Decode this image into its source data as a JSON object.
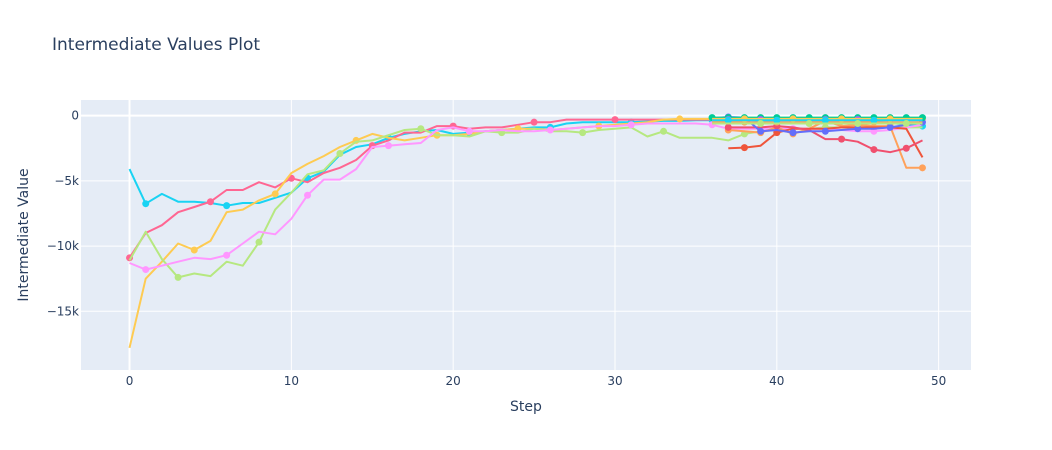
{
  "chart_data": {
    "type": "line",
    "title": "Intermediate Values Plot",
    "xlabel": "Step",
    "ylabel": "Intermediate Value",
    "xlim": [
      -3,
      52
    ],
    "ylim": [
      -19500,
      1200
    ],
    "x_ticks": [
      0,
      10,
      20,
      30,
      40,
      50
    ],
    "y_ticks": [
      {
        "value": 0,
        "label": "0"
      },
      {
        "value": -5000,
        "label": "−5k"
      },
      {
        "value": -10000,
        "label": "−10k"
      },
      {
        "value": -15000,
        "label": "−15k"
      }
    ],
    "grid": true,
    "plot_bg": "#e5ecf6",
    "series": [
      {
        "color": "#19d3f3",
        "x": [
          0,
          1,
          2,
          3,
          4,
          5,
          6,
          7,
          8,
          9,
          10,
          11,
          12,
          13,
          14,
          15,
          16,
          17,
          18,
          19,
          20,
          21,
          22,
          23,
          24,
          25,
          26,
          27,
          28,
          29,
          30,
          31,
          32,
          33,
          34,
          35,
          36,
          37,
          38,
          39,
          40,
          41,
          42,
          43,
          44,
          45,
          46,
          47,
          48,
          49
        ],
        "y": [
          -4100,
          -6750,
          -6000,
          -6600,
          -6600,
          -6700,
          -6900,
          -6700,
          -6700,
          -6300,
          -5900,
          -4800,
          -4300,
          -3000,
          -2400,
          -2200,
          -1700,
          -1400,
          -1200,
          -1100,
          -1400,
          -1300,
          -1200,
          -1100,
          -1000,
          -900,
          -900,
          -600,
          -500,
          -500,
          -500,
          -500,
          -450,
          -400,
          -400,
          -350,
          -350,
          -300,
          -300,
          -400,
          -350,
          -350,
          -350,
          -350,
          -350,
          -400,
          -450,
          -550,
          -700,
          -800
        ],
        "markers": [
          1,
          6,
          11,
          16,
          21,
          26,
          31,
          36,
          41,
          46,
          49
        ]
      },
      {
        "color": "#ff6692",
        "x": [
          0,
          1,
          2,
          3,
          4,
          5,
          6,
          7,
          8,
          9,
          10,
          11,
          12,
          13,
          14,
          15,
          16,
          17,
          18,
          19,
          20,
          21,
          22,
          23,
          24,
          25,
          26,
          27,
          28,
          29,
          30,
          31,
          32,
          33,
          34,
          35,
          36,
          37,
          38,
          39,
          40,
          41,
          42,
          43,
          44,
          45,
          46,
          47,
          48,
          49
        ],
        "y": [
          -10900,
          -9000,
          -8400,
          -7400,
          -7000,
          -6600,
          -5700,
          -5700,
          -5100,
          -5500,
          -4800,
          -5100,
          -4400,
          -4000,
          -3400,
          -2300,
          -1900,
          -1300,
          -1300,
          -800,
          -800,
          -1000,
          -900,
          -900,
          -700,
          -500,
          -500,
          -300,
          -300,
          -300,
          -300,
          -300,
          -300,
          -300,
          -300,
          -300,
          -300,
          -300,
          -300,
          -300,
          -300,
          -300,
          -300,
          -300,
          -300,
          -300,
          -300,
          -300,
          -300,
          -300
        ],
        "markers": [
          0,
          5,
          10,
          15,
          20,
          25,
          30
        ]
      },
      {
        "color": "#fecb52",
        "x": [
          0,
          1,
          2,
          3,
          4,
          5,
          6,
          7,
          8,
          9,
          10,
          11,
          12,
          13,
          14,
          15,
          16,
          17,
          18,
          19,
          20,
          21,
          22,
          23,
          24,
          25,
          26,
          27,
          28,
          29,
          30,
          31,
          32,
          33,
          34,
          35,
          36,
          37,
          38,
          39,
          40,
          41,
          42,
          43,
          44,
          45,
          46,
          47,
          48,
          49
        ],
        "y": [
          -17800,
          -12500,
          -11200,
          -9800,
          -10300,
          -9600,
          -7400,
          -7200,
          -6500,
          -6000,
          -4400,
          -3700,
          -3100,
          -2400,
          -1900,
          -1400,
          -1700,
          -1900,
          -1700,
          -1500,
          -1500,
          -1400,
          -1200,
          -1100,
          -1000,
          -1000,
          -1100,
          -1000,
          -900,
          -800,
          -700,
          -600,
          -500,
          -300,
          -250,
          -250,
          -250,
          -250,
          -250,
          -250,
          -250,
          -250,
          -250,
          -250,
          -250,
          -250,
          -250,
          -250,
          -250,
          -250
        ],
        "markers": [
          4,
          9,
          14,
          19,
          24,
          29,
          34,
          39,
          44,
          48,
          49
        ]
      },
      {
        "color": "#b6e880",
        "x": [
          0,
          1,
          2,
          3,
          4,
          5,
          6,
          7,
          8,
          9,
          10,
          11,
          12,
          13,
          14,
          15,
          16,
          17,
          18,
          19,
          20,
          21,
          22,
          23,
          24,
          25,
          26,
          27,
          28,
          29,
          30,
          31,
          32,
          33,
          34,
          35,
          36,
          37,
          38,
          39,
          40,
          41,
          42,
          43,
          44,
          45,
          46,
          47,
          48,
          49
        ],
        "y": [
          -11100,
          -8900,
          -11000,
          -12400,
          -12100,
          -12300,
          -11200,
          -11500,
          -9700,
          -7200,
          -5900,
          -4500,
          -4200,
          -2900,
          -2000,
          -1900,
          -1500,
          -1100,
          -1000,
          -1500,
          -1500,
          -1600,
          -1200,
          -1300,
          -1300,
          -1000,
          -1200,
          -1200,
          -1300,
          -1100,
          -1000,
          -900,
          -1600,
          -1200,
          -1700,
          -1700,
          -1700,
          -1900,
          -1400,
          -1200,
          -1100,
          -1000,
          -1000,
          -900,
          -900,
          -900,
          -900,
          -900,
          -900,
          -900
        ],
        "markers": [
          3,
          8,
          13,
          18,
          23,
          28,
          33,
          38,
          43
        ]
      },
      {
        "color": "#ff97ff",
        "x": [
          0,
          1,
          2,
          3,
          4,
          5,
          6,
          7,
          8,
          9,
          10,
          11,
          12,
          13,
          14,
          15,
          16,
          17,
          18,
          19,
          20,
          21,
          22,
          23,
          24,
          25,
          26,
          27,
          28,
          29,
          30,
          31,
          32,
          33,
          34,
          35,
          36,
          37,
          38,
          39,
          40,
          41,
          42,
          43,
          44,
          45,
          46,
          47,
          48,
          49
        ],
        "y": [
          -11300,
          -11800,
          -11500,
          -11200,
          -10900,
          -11000,
          -10700,
          -9800,
          -8900,
          -9100,
          -7900,
          -6100,
          -4900,
          -4900,
          -4100,
          -2400,
          -2300,
          -2200,
          -2100,
          -1100,
          -900,
          -1200,
          -1200,
          -1100,
          -1200,
          -1200,
          -1100,
          -1000,
          -900,
          -800,
          -800,
          -700,
          -600,
          -600,
          -600,
          -600,
          -700,
          -1000,
          -1000,
          -1000,
          -1000,
          -1000,
          -1000,
          -1000,
          -1100,
          -1200,
          -1200,
          -1100,
          -900,
          -700
        ],
        "markers": [
          1,
          6,
          11,
          16,
          21,
          26,
          31,
          36,
          41,
          46
        ]
      },
      {
        "color": "#ffa15a",
        "x": [
          37,
          38,
          39,
          40,
          41,
          42,
          43,
          44,
          45,
          46,
          47,
          48,
          49
        ],
        "y": [
          -1100,
          -1200,
          -1300,
          -900,
          -1400,
          -1000,
          -400,
          -800,
          -700,
          -800,
          -800,
          -4000,
          -4000
        ],
        "markers": [
          37,
          39,
          41,
          43,
          45,
          47,
          49
        ]
      },
      {
        "color": "#ef553b",
        "x": [
          37,
          38,
          39,
          40,
          41,
          42,
          43,
          44,
          45,
          46,
          47,
          48,
          49
        ],
        "y": [
          -2500,
          -2450,
          -2300,
          -1300,
          -1000,
          -1000,
          -1000,
          -900,
          -900,
          -900,
          -900,
          -1000,
          -3200
        ],
        "markers": [
          38,
          40
        ]
      },
      {
        "color": "#f0506e",
        "x": [
          37,
          38,
          39,
          40,
          41,
          42,
          43,
          44,
          45,
          46,
          47,
          48,
          49
        ],
        "y": [
          -900,
          -900,
          -900,
          -800,
          -900,
          -1100,
          -1800,
          -1800,
          -2000,
          -2600,
          -2800,
          -2500,
          -1900
        ],
        "markers": [
          37,
          40,
          44,
          46,
          48
        ]
      },
      {
        "color": "#636efa",
        "x": [
          36,
          37,
          38,
          39,
          40,
          41,
          42,
          43,
          44,
          45,
          46,
          47,
          48,
          49
        ],
        "y": [
          -200,
          -100,
          -150,
          -1200,
          -1100,
          -1300,
          -1200,
          -1200,
          -1100,
          -1000,
          -1000,
          -900,
          -700,
          -500
        ],
        "markers": [
          37,
          39,
          41,
          43,
          45,
          47,
          49
        ]
      },
      {
        "color": "#00cc96",
        "x": [
          36,
          37,
          38,
          39,
          40,
          41,
          42,
          43,
          44,
          45,
          46,
          47,
          48,
          49
        ],
        "y": [
          -150,
          -150,
          -150,
          -150,
          -150,
          -150,
          -150,
          -150,
          -150,
          -150,
          -150,
          -150,
          -150,
          -150
        ],
        "markers": [
          36,
          37,
          38,
          39,
          40,
          41,
          42,
          43,
          44,
          45,
          46,
          47,
          48,
          49
        ]
      },
      {
        "color": "#ab63fa",
        "x": [
          36,
          37,
          38,
          39,
          40,
          41,
          42,
          43,
          44,
          45,
          46,
          47,
          48,
          49
        ],
        "y": [
          -300,
          -300,
          -300,
          -300,
          -300,
          -300,
          -300,
          -300,
          -300,
          -300,
          -300,
          -300,
          -300,
          -300
        ],
        "markers": [
          37,
          39,
          41,
          43,
          45,
          47
        ]
      },
      {
        "color": "#ffa15a",
        "x": [
          36,
          37,
          38,
          39,
          40,
          41,
          42,
          43,
          44,
          45,
          46,
          47,
          48,
          49
        ],
        "y": [
          -450,
          -450,
          -500,
          -500,
          -500,
          -500,
          -450,
          -450,
          -450,
          -450,
          -500,
          -500,
          -500,
          -500
        ],
        "markers": [
          38,
          40,
          42,
          44,
          46,
          48
        ]
      },
      {
        "color": "#fecb52",
        "x": [
          36,
          37,
          38,
          39,
          40,
          41,
          42,
          43,
          44,
          45,
          46,
          47,
          48,
          49
        ],
        "y": [
          -250,
          -250,
          -250,
          -250,
          -250,
          -250,
          -250,
          -250,
          -250,
          -250,
          -250,
          -250,
          -250,
          -250
        ],
        "markers": [
          38,
          41,
          44,
          47
        ]
      },
      {
        "color": "#19d3f3",
        "x": [
          36,
          37,
          38,
          39,
          40,
          41,
          42,
          43,
          44,
          45,
          46,
          47,
          48,
          49
        ],
        "y": [
          -350,
          -350,
          -350,
          -350,
          -350,
          -350,
          -350,
          -350,
          -350,
          -350,
          -350,
          -350,
          -350,
          -350
        ],
        "markers": [
          37,
          40,
          43,
          46
        ]
      },
      {
        "color": "#b6e880",
        "x": [
          36,
          37,
          38,
          39,
          40,
          41,
          42,
          43,
          44,
          45,
          46,
          47,
          48,
          49
        ],
        "y": [
          -600,
          -600,
          -600,
          -600,
          -600,
          -600,
          -600,
          -600,
          -600,
          -600,
          -600,
          -600,
          -600,
          -600
        ],
        "markers": [
          39,
          42,
          45,
          48
        ]
      }
    ]
  }
}
